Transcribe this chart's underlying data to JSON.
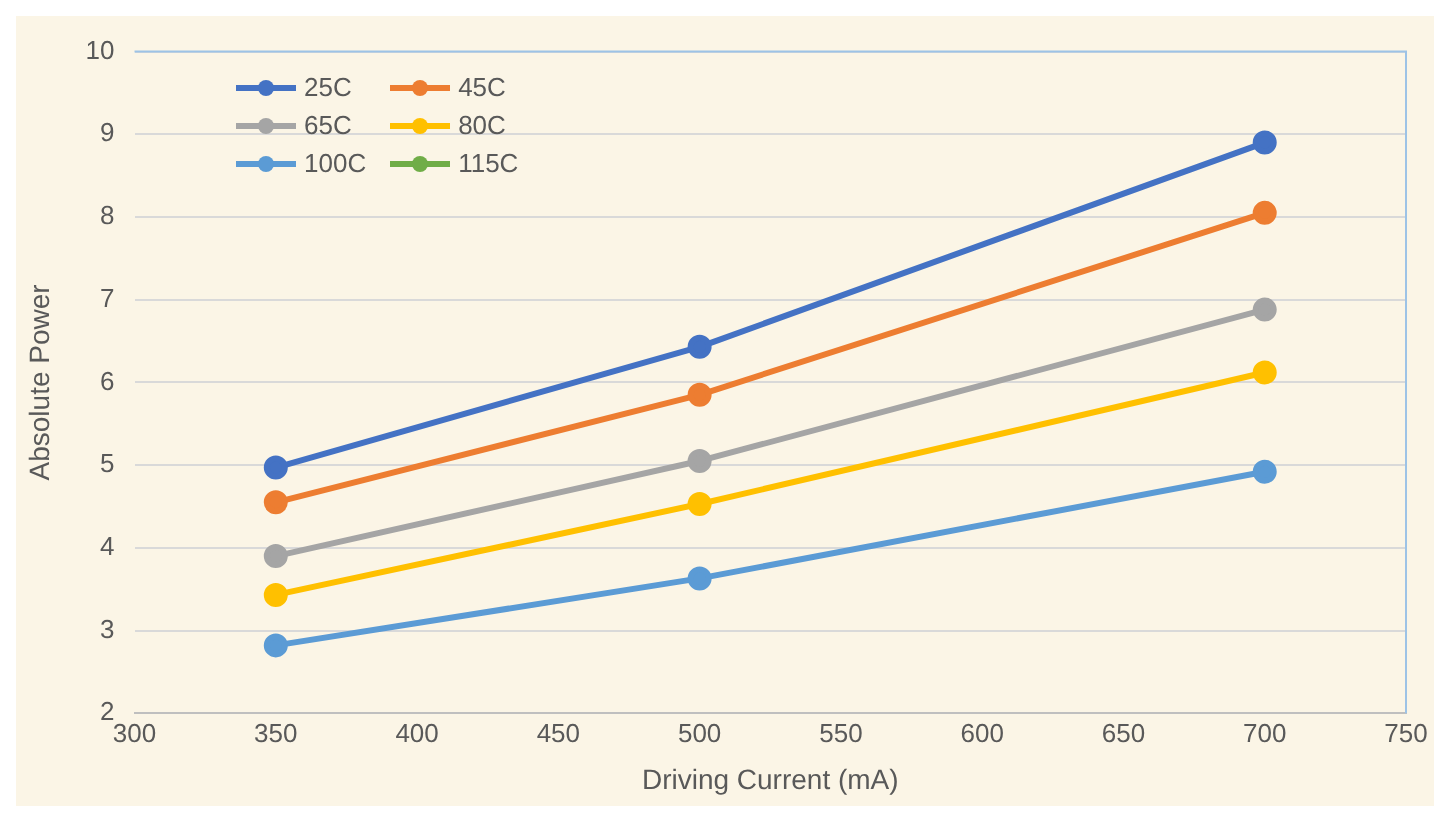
{
  "chart_data": {
    "type": "line",
    "xlabel": "Driving Current (mA)",
    "ylabel": "Absolute Power",
    "x": [
      350,
      500,
      700
    ],
    "series": [
      {
        "name": "25C",
        "color": "#4472c4",
        "values": [
          4.97,
          6.43,
          8.9
        ]
      },
      {
        "name": "45C",
        "color": "#ed7d31",
        "values": [
          4.55,
          5.85,
          8.05
        ]
      },
      {
        "name": "65C",
        "color": "#a5a5a5",
        "values": [
          3.9,
          5.05,
          6.88
        ]
      },
      {
        "name": "80C",
        "color": "#ffc000",
        "values": [
          3.43,
          4.53,
          6.12
        ]
      },
      {
        "name": "100C",
        "color": "#5b9bd5",
        "values": [
          2.82,
          3.63,
          4.92
        ]
      },
      {
        "name": "115C",
        "color": "#70ad47",
        "values": [
          null,
          null,
          null
        ]
      }
    ],
    "xlim": [
      300,
      750
    ],
    "xticks": [
      300,
      350,
      400,
      450,
      500,
      550,
      600,
      650,
      700,
      750
    ],
    "ylim": [
      2,
      10
    ],
    "yticks": [
      2,
      3,
      4,
      5,
      6,
      7,
      8,
      9,
      10
    ],
    "grid": "y",
    "legend": "top left",
    "marker": "circle",
    "line_style": "solid"
  }
}
